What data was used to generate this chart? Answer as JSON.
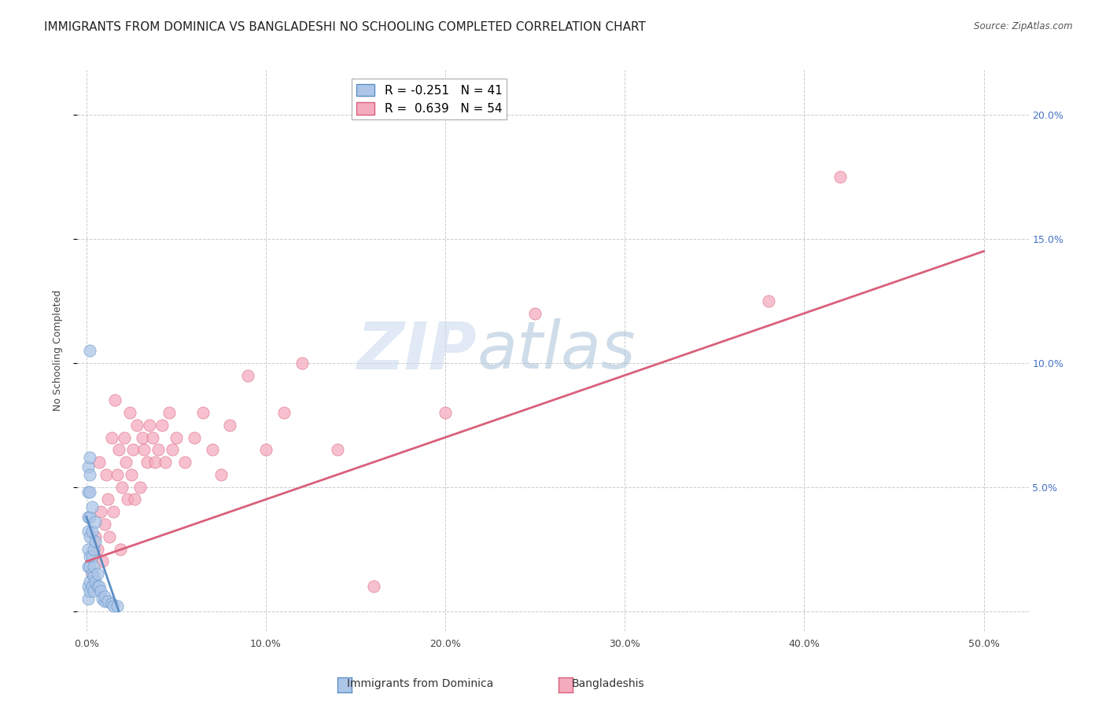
{
  "title": "IMMIGRANTS FROM DOMINICA VS BANGLADESHI NO SCHOOLING COMPLETED CORRELATION CHART",
  "source": "Source: ZipAtlas.com",
  "ylabel": "No Schooling Completed",
  "x_ticks": [
    0.0,
    0.1,
    0.2,
    0.3,
    0.4,
    0.5
  ],
  "x_tick_labels": [
    "0.0%",
    "10.0%",
    "20.0%",
    "30.0%",
    "40.0%",
    "50.0%"
  ],
  "y_ticks": [
    0.0,
    0.05,
    0.1,
    0.15,
    0.2
  ],
  "y_tick_labels": [
    "",
    "5.0%",
    "10.0%",
    "15.0%",
    "20.0%"
  ],
  "xlim": [
    -0.005,
    0.525
  ],
  "ylim": [
    -0.008,
    0.218
  ],
  "blue_R": -0.251,
  "blue_N": 41,
  "pink_R": 0.639,
  "pink_N": 54,
  "blue_color": "#adc6e8",
  "pink_color": "#f5abbe",
  "blue_line_color": "#5b8ec4",
  "pink_line_color": "#d9607a",
  "watermark_zip": "ZIP",
  "watermark_atlas": "atlas",
  "watermark_color_zip": "#c5d8ee",
  "watermark_color_atlas": "#b0cce0",
  "grid_color": "#cccccc",
  "background_color": "#ffffff",
  "title_fontsize": 11,
  "axis_label_fontsize": 9,
  "tick_fontsize": 9,
  "legend_fontsize": 11,
  "blue_scatter_x": [
    0.001,
    0.001,
    0.001,
    0.001,
    0.001,
    0.001,
    0.001,
    0.001,
    0.002,
    0.002,
    0.002,
    0.002,
    0.002,
    0.002,
    0.002,
    0.002,
    0.002,
    0.003,
    0.003,
    0.003,
    0.003,
    0.003,
    0.004,
    0.004,
    0.004,
    0.004,
    0.005,
    0.005,
    0.005,
    0.006,
    0.006,
    0.007,
    0.008,
    0.009,
    0.01,
    0.01,
    0.012,
    0.014,
    0.015,
    0.017,
    0.002
  ],
  "blue_scatter_y": [
    0.005,
    0.01,
    0.018,
    0.025,
    0.032,
    0.038,
    0.048,
    0.058,
    0.008,
    0.012,
    0.018,
    0.022,
    0.03,
    0.038,
    0.048,
    0.055,
    0.062,
    0.01,
    0.015,
    0.022,
    0.032,
    0.042,
    0.008,
    0.014,
    0.018,
    0.025,
    0.012,
    0.028,
    0.036,
    0.01,
    0.015,
    0.01,
    0.008,
    0.005,
    0.004,
    0.006,
    0.004,
    0.003,
    0.002,
    0.002,
    0.105
  ],
  "pink_scatter_x": [
    0.003,
    0.005,
    0.006,
    0.007,
    0.008,
    0.009,
    0.01,
    0.011,
    0.012,
    0.013,
    0.014,
    0.015,
    0.016,
    0.017,
    0.018,
    0.019,
    0.02,
    0.021,
    0.022,
    0.023,
    0.024,
    0.025,
    0.026,
    0.027,
    0.028,
    0.03,
    0.031,
    0.032,
    0.034,
    0.035,
    0.037,
    0.038,
    0.04,
    0.042,
    0.044,
    0.046,
    0.048,
    0.05,
    0.055,
    0.06,
    0.065,
    0.07,
    0.075,
    0.08,
    0.09,
    0.1,
    0.11,
    0.12,
    0.14,
    0.16,
    0.2,
    0.25,
    0.38,
    0.42
  ],
  "pink_scatter_y": [
    0.015,
    0.03,
    0.025,
    0.06,
    0.04,
    0.02,
    0.035,
    0.055,
    0.045,
    0.03,
    0.07,
    0.04,
    0.085,
    0.055,
    0.065,
    0.025,
    0.05,
    0.07,
    0.06,
    0.045,
    0.08,
    0.055,
    0.065,
    0.045,
    0.075,
    0.05,
    0.07,
    0.065,
    0.06,
    0.075,
    0.07,
    0.06,
    0.065,
    0.075,
    0.06,
    0.08,
    0.065,
    0.07,
    0.06,
    0.07,
    0.08,
    0.065,
    0.055,
    0.075,
    0.095,
    0.065,
    0.08,
    0.1,
    0.065,
    0.01,
    0.08,
    0.12,
    0.125,
    0.175
  ],
  "blue_trend_x": [
    0.0,
    0.018
  ],
  "blue_trend_y": [
    0.038,
    0.0
  ],
  "pink_trend_x": [
    0.0,
    0.5
  ],
  "pink_trend_y": [
    0.02,
    0.145
  ],
  "legend_label_blue": "R = -0.251   N = 41",
  "legend_label_pink": "R =  0.639   N = 54",
  "bottom_legend_blue": "Immigrants from Dominica",
  "bottom_legend_pink": "Bangladeshis"
}
